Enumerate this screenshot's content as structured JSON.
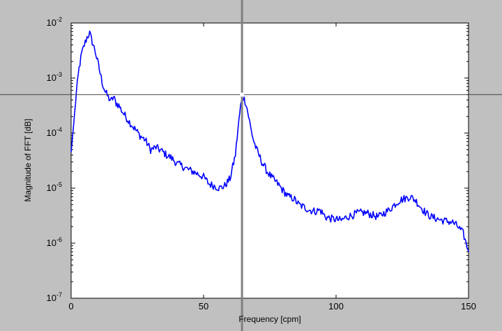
{
  "chart_data": {
    "type": "line",
    "title": "",
    "xlabel": "Frequency [cpm]",
    "ylabel": "Magnitude of FFT [dB]",
    "xlim": [
      0,
      150
    ],
    "ylim": [
      1e-07,
      0.01
    ],
    "yscale": "log",
    "grid": false,
    "legend": "none",
    "x_ticks": [
      0,
      50,
      100,
      150
    ],
    "y_ticks": [
      {
        "value": 1e-07,
        "base": "10",
        "exp": "-7"
      },
      {
        "value": 1e-06,
        "base": "10",
        "exp": "-6"
      },
      {
        "value": 1e-05,
        "base": "10",
        "exp": "-5"
      },
      {
        "value": 0.0001,
        "base": "10",
        "exp": "-4"
      },
      {
        "value": 0.001,
        "base": "10",
        "exp": "-3"
      },
      {
        "value": 0.01,
        "base": "10",
        "exp": "-2"
      }
    ],
    "crosshair": {
      "x": 64.5,
      "y": 0.0005
    },
    "series": [
      {
        "color": "#0000ff",
        "x": [
          0,
          1,
          2,
          3,
          4,
          5,
          6,
          7,
          8,
          9,
          10,
          11,
          12,
          13,
          14,
          15,
          16,
          17,
          18,
          19,
          20,
          22,
          24,
          26,
          28,
          30,
          32,
          34,
          36,
          38,
          40,
          42,
          44,
          46,
          48,
          50,
          52,
          54,
          56,
          58,
          60,
          62,
          63,
          64,
          65,
          66,
          67,
          68,
          69,
          70,
          72,
          74,
          76,
          78,
          80,
          82,
          84,
          86,
          88,
          90,
          92,
          94,
          96,
          98,
          100,
          102,
          104,
          106,
          108,
          110,
          112,
          114,
          116,
          118,
          120,
          122,
          124,
          126,
          128,
          130,
          132,
          134,
          136,
          138,
          140,
          142,
          144,
          146,
          148,
          150
        ],
        "y": [
          4.5e-05,
          0.00015,
          0.00055,
          0.0015,
          0.0028,
          0.004,
          0.0055,
          0.0065,
          0.0045,
          0.0032,
          0.002,
          0.0012,
          0.00075,
          0.00055,
          0.00045,
          0.00038,
          0.00045,
          0.00035,
          0.00032,
          0.00026,
          0.00022,
          0.00016,
          0.00012,
          9e-05,
          7.5e-05,
          5e-05,
          5.5e-05,
          4.8e-05,
          4e-05,
          3.5e-05,
          2.8e-05,
          2.5e-05,
          2.2e-05,
          2e-05,
          1.8e-05,
          1.6e-05,
          1.2e-05,
          1.1e-05,
          1e-05,
          1.1e-05,
          1.5e-05,
          4e-05,
          0.00012,
          0.00032,
          0.00045,
          0.00035,
          0.0002,
          0.00011,
          7e-05,
          5e-05,
          3e-05,
          2e-05,
          1.5e-05,
          1.2e-05,
          9e-06,
          7e-06,
          6.5e-06,
          5e-06,
          4.5e-06,
          4e-06,
          3.8e-06,
          4e-06,
          3e-06,
          2.8e-06,
          2.7e-06,
          2.6e-06,
          3e-06,
          3.2e-06,
          3.5e-06,
          3.6e-06,
          3.5e-06,
          3.2e-06,
          3e-06,
          3.5e-06,
          4e-06,
          5e-06,
          6e-06,
          6.5e-06,
          7e-06,
          6e-06,
          4.5e-06,
          3.5e-06,
          3e-06,
          2.8e-06,
          2.6e-06,
          2.5e-06,
          2.4e-06,
          2e-06,
          1.5e-06,
          7e-07
        ]
      }
    ]
  }
}
